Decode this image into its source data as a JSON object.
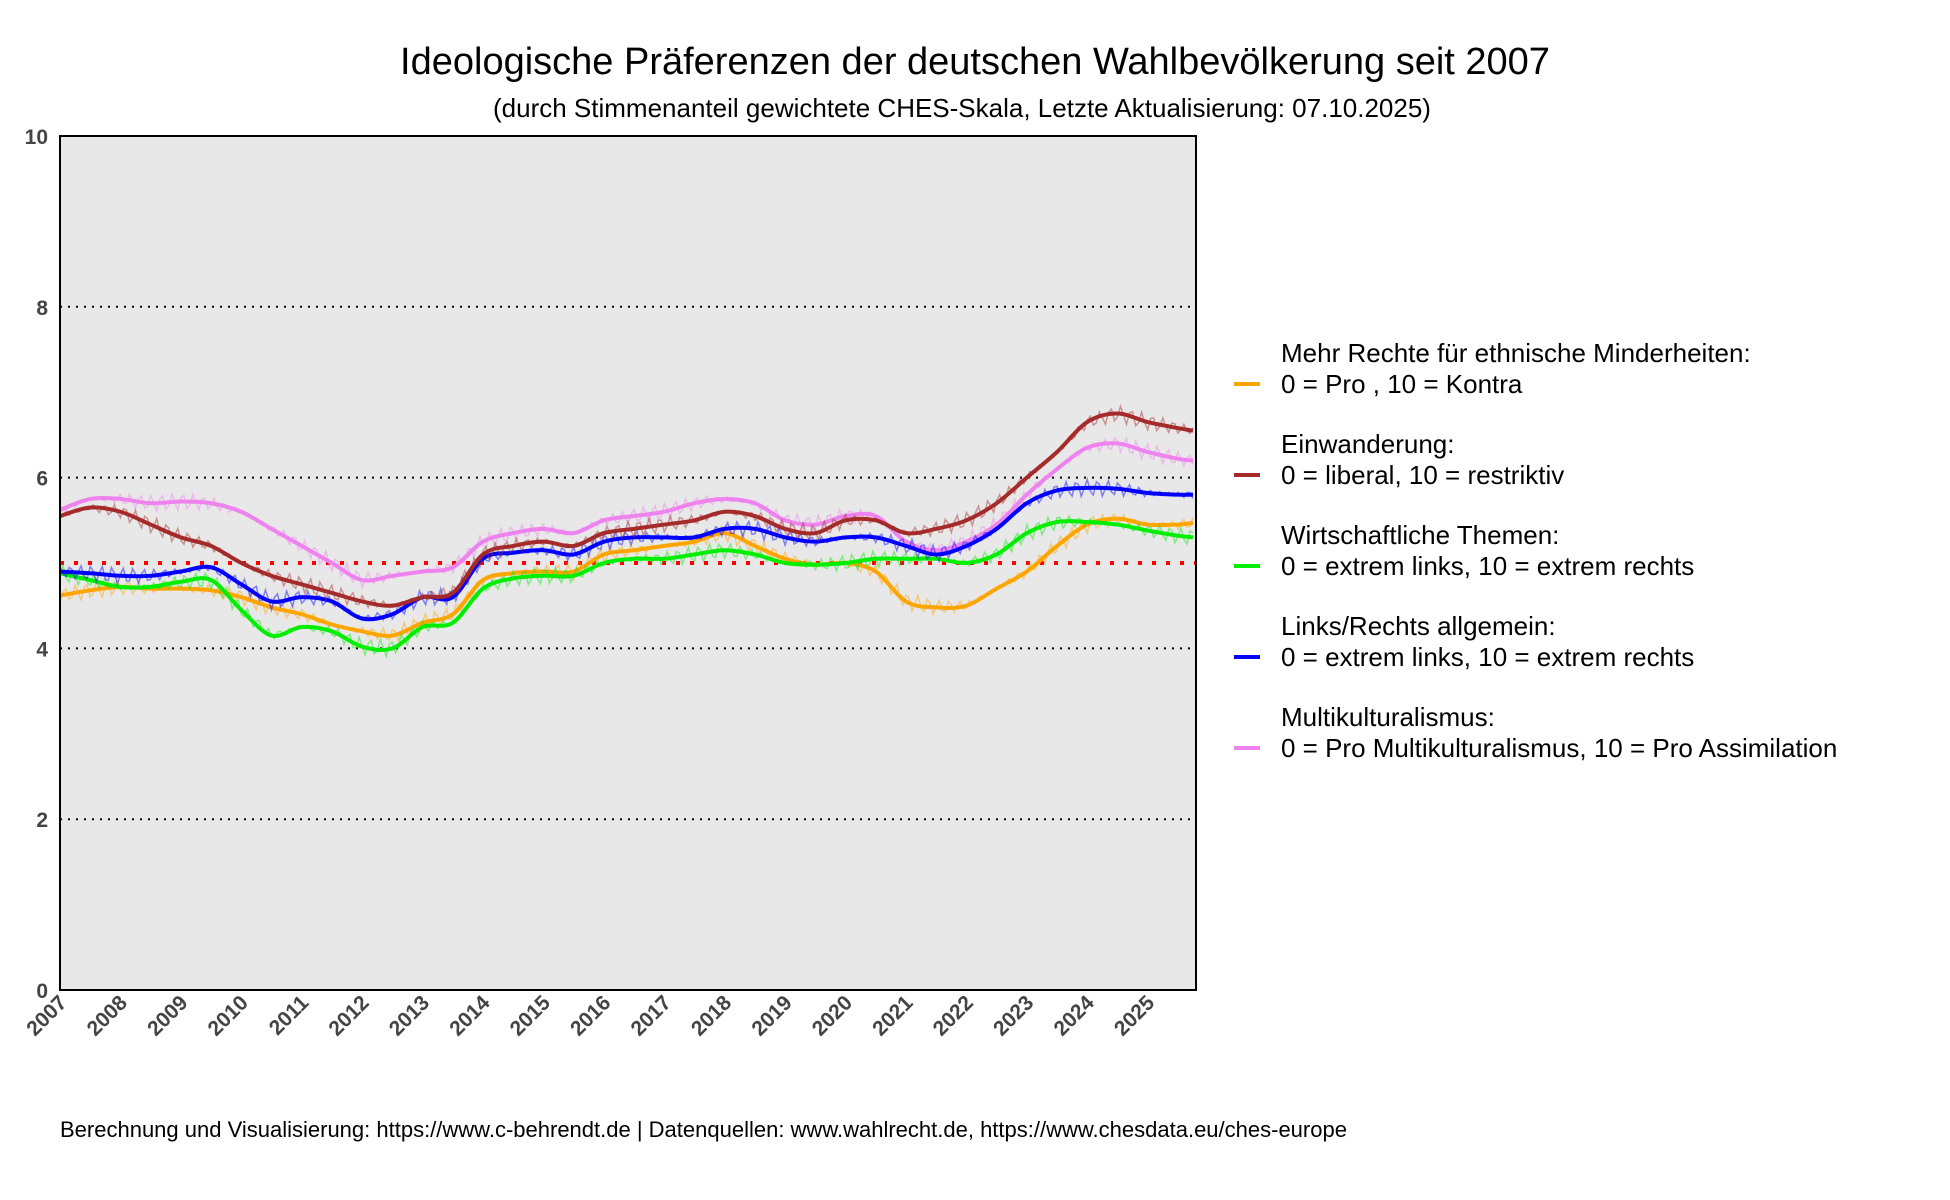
{
  "chart_data": {
    "type": "line",
    "title": "Ideologische Präferenzen der deutschen Wahlbevölkerung seit 2007",
    "subtitle": "(durch Stimmenanteil gewichtete CHES-Skala, Letzte Aktualisierung: 07.10.2025)",
    "xlabel": "",
    "ylabel": "",
    "xlim": [
      2007,
      2025.8
    ],
    "ylim": [
      0,
      10
    ],
    "yticks": [
      "0",
      "2",
      "4",
      "6",
      "8",
      "10"
    ],
    "xticks": [
      "2007",
      "2008",
      "2009",
      "2010",
      "2011",
      "2012",
      "2013",
      "2014",
      "2015",
      "2016",
      "2017",
      "2018",
      "2019",
      "2020",
      "2021",
      "2022",
      "2023",
      "2024",
      "2025"
    ],
    "grid": "horizontal dotted",
    "reference_line": {
      "y": 5,
      "color": "#ff0000"
    },
    "legend_position": "right",
    "x": [
      2007,
      2007.5,
      2008,
      2008.5,
      2009,
      2009.5,
      2010,
      2010.5,
      2011,
      2011.5,
      2012,
      2012.5,
      2013,
      2013.5,
      2014,
      2014.5,
      2015,
      2015.5,
      2016,
      2016.5,
      2017,
      2017.5,
      2018,
      2018.5,
      2019,
      2019.5,
      2020,
      2020.5,
      2021,
      2021.5,
      2022,
      2022.5,
      2023,
      2023.5,
      2024,
      2024.5,
      2025,
      2025.5,
      2025.75
    ],
    "series": [
      {
        "name": "Mehr Rechte für ethnische Minderheiten:",
        "desc": "0 = Pro , 10 = Kontra",
        "color": "#ffa500",
        "values": [
          4.62,
          4.68,
          4.72,
          4.7,
          4.7,
          4.68,
          4.6,
          4.48,
          4.4,
          4.28,
          4.2,
          4.15,
          4.3,
          4.4,
          4.8,
          4.88,
          4.9,
          4.9,
          5.1,
          5.15,
          5.2,
          5.25,
          5.35,
          5.2,
          5.05,
          4.98,
          5.0,
          4.9,
          4.55,
          4.48,
          4.5,
          4.7,
          4.9,
          5.2,
          5.45,
          5.52,
          5.45,
          5.45,
          5.47
        ]
      },
      {
        "name": "Einwanderung:",
        "desc": "0 = liberal, 10 = restriktiv",
        "color": "#a52a2a",
        "values": [
          5.55,
          5.65,
          5.6,
          5.45,
          5.3,
          5.2,
          5.0,
          4.85,
          4.75,
          4.65,
          4.55,
          4.5,
          4.6,
          4.65,
          5.1,
          5.2,
          5.25,
          5.2,
          5.35,
          5.4,
          5.45,
          5.5,
          5.6,
          5.55,
          5.4,
          5.35,
          5.5,
          5.5,
          5.35,
          5.4,
          5.5,
          5.7,
          6.0,
          6.3,
          6.65,
          6.75,
          6.65,
          6.58,
          6.55
        ]
      },
      {
        "name": "Wirtschaftliche Themen:",
        "desc": "0 = extrem links, 10 = extrem rechts",
        "color": "#00ee00",
        "values": [
          4.88,
          4.8,
          4.72,
          4.72,
          4.78,
          4.8,
          4.45,
          4.15,
          4.25,
          4.2,
          4.02,
          4.0,
          4.25,
          4.3,
          4.7,
          4.82,
          4.85,
          4.85,
          5.0,
          5.05,
          5.05,
          5.1,
          5.15,
          5.1,
          5.0,
          4.98,
          5.0,
          5.05,
          5.05,
          5.05,
          5.0,
          5.1,
          5.35,
          5.48,
          5.48,
          5.45,
          5.38,
          5.32,
          5.3
        ]
      },
      {
        "name": "Links/Rechts allgemein:",
        "desc": "0 = extrem links, 10 = extrem rechts",
        "color": "#0000ff",
        "values": [
          4.9,
          4.88,
          4.85,
          4.85,
          4.9,
          4.95,
          4.75,
          4.55,
          4.6,
          4.55,
          4.35,
          4.4,
          4.6,
          4.6,
          5.05,
          5.12,
          5.15,
          5.1,
          5.25,
          5.3,
          5.3,
          5.3,
          5.4,
          5.4,
          5.3,
          5.25,
          5.3,
          5.3,
          5.2,
          5.1,
          5.2,
          5.4,
          5.7,
          5.85,
          5.88,
          5.87,
          5.82,
          5.8,
          5.8
        ]
      },
      {
        "name": "Multikulturalismus:",
        "desc": "0 = Pro Multikulturalismus, 10 = Pro Assimilation",
        "color": "#ee82ee",
        "values": [
          5.62,
          5.75,
          5.75,
          5.7,
          5.72,
          5.7,
          5.6,
          5.4,
          5.2,
          5.0,
          4.8,
          4.85,
          4.9,
          4.95,
          5.25,
          5.35,
          5.4,
          5.35,
          5.5,
          5.55,
          5.6,
          5.7,
          5.75,
          5.7,
          5.5,
          5.45,
          5.55,
          5.55,
          5.25,
          5.15,
          5.25,
          5.45,
          5.8,
          6.1,
          6.35,
          6.4,
          6.3,
          6.22,
          6.2
        ]
      }
    ],
    "footer": "Berechnung und Visualisierung: https://www.c-behrendt.de | Datenquellen: www.wahlrecht.de, https://www.chesdata.eu/ches-europe"
  }
}
